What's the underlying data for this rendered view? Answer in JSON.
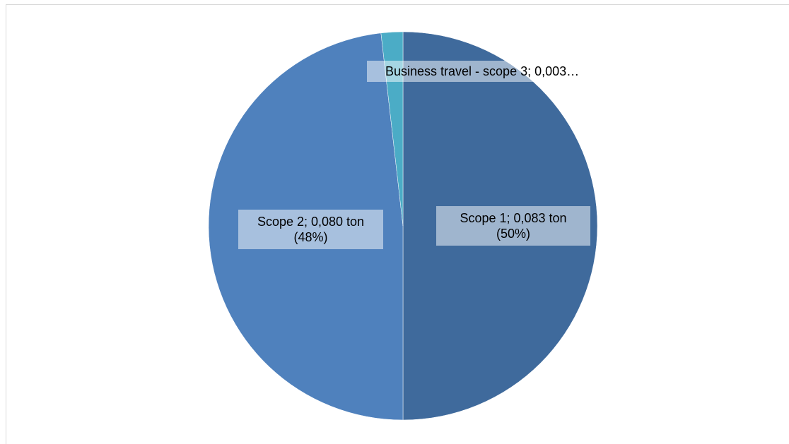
{
  "chart_data": {
    "type": "pie",
    "values": [
      0.083,
      0.08,
      0.003
    ],
    "value_labels": [
      "Scope 1; 0,083 ton (50%)",
      "Scope 2; 0,080 ton (48%)",
      "Business travel - scope 3; 0,003…"
    ],
    "colors": [
      "#3f6a9c",
      "#4f81bd",
      "#4bacc6"
    ]
  }
}
